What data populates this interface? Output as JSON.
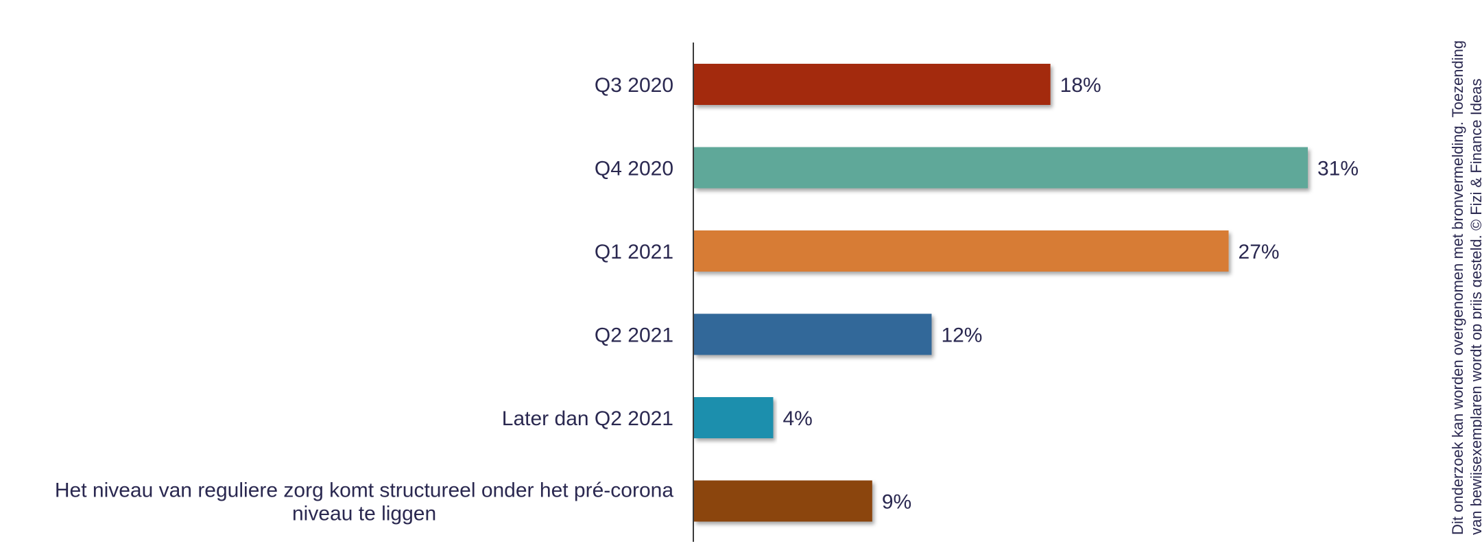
{
  "chart_data": {
    "type": "bar",
    "orientation": "horizontal",
    "categories": [
      "Q3 2020",
      "Q4 2020",
      "Q1 2021",
      "Q2 2021",
      "Later dan Q2 2021",
      "Het niveau van reguliere zorg komt structureel onder het pré-corona niveau te liggen"
    ],
    "category_lines": [
      [
        "Q3 2020"
      ],
      [
        "Q4 2020"
      ],
      [
        "Q1 2021"
      ],
      [
        "Q2 2021"
      ],
      [
        "Later dan Q2 2021"
      ],
      [
        "Het niveau van reguliere zorg komt structureel onder het pré-corona",
        "niveau te liggen"
      ]
    ],
    "values": [
      18,
      31,
      27,
      12,
      4,
      9
    ],
    "value_labels": [
      "18%",
      "31%",
      "27%",
      "12%",
      "4%",
      "9%"
    ],
    "colors": [
      "#a32a0e",
      "#5fa899",
      "#d77b34",
      "#336799",
      "#1f8fad",
      "#8b4511"
    ],
    "xlim": [
      0,
      31
    ],
    "grid": false,
    "legend": "none"
  },
  "copyright": {
    "line1": "Dit onderzoek kan worden overgenomen met bronvermelding. Toezending",
    "line2": "van bewijsexemplaren wordt op prijs gesteld. © Fizi & Finance Ideas"
  }
}
